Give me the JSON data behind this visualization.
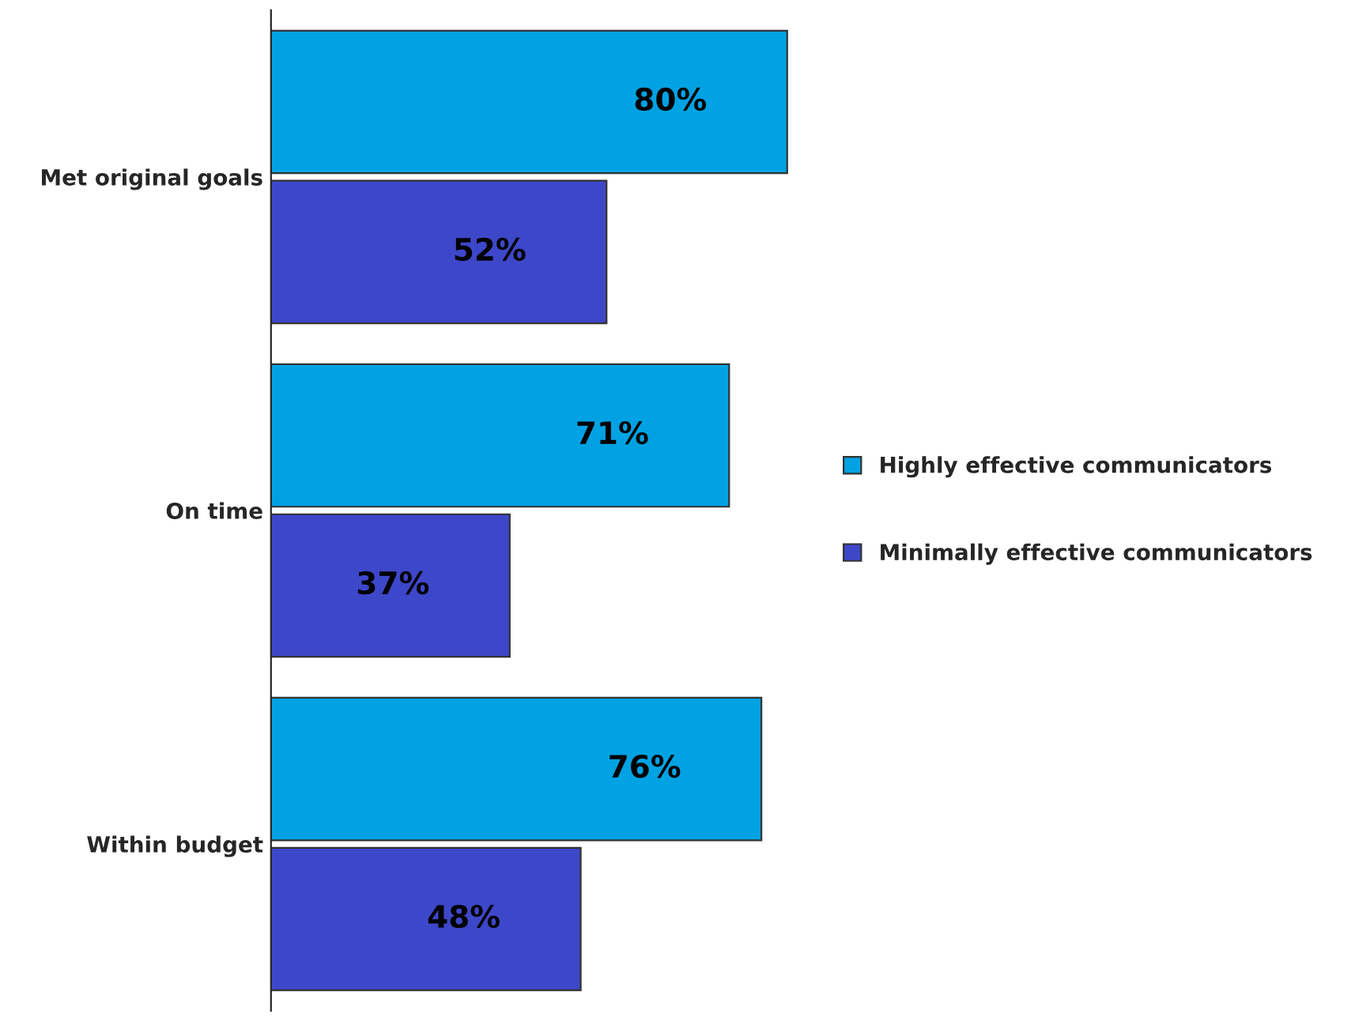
{
  "chart_data": {
    "type": "bar",
    "orientation": "horizontal",
    "categories": [
      "Met original goals",
      "On time",
      "Within budget"
    ],
    "series": [
      {
        "name": "Highly effective communicators",
        "color": "#00a2e3",
        "values": [
          80,
          71,
          76
        ],
        "value_labels": [
          "80%",
          "71%",
          "76%"
        ]
      },
      {
        "name": "Minimally effective communicators",
        "color": "#3d47c9",
        "values": [
          52,
          37,
          48
        ],
        "value_labels": [
          "52%",
          "37%",
          "48%"
        ]
      }
    ],
    "legend": "right",
    "grid": false,
    "tick_labels": "y"
  }
}
